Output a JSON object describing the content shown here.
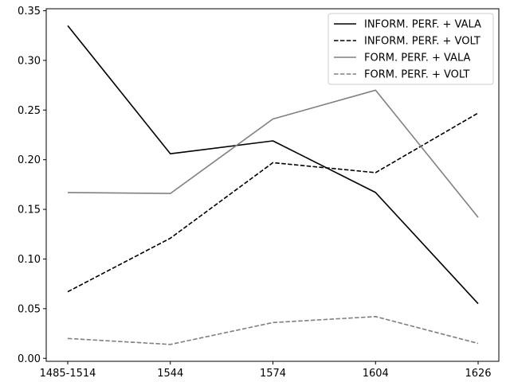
{
  "chart_data": {
    "type": "line",
    "title": "",
    "xlabel": "",
    "ylabel": "",
    "categories": [
      "1485-1514",
      "1544",
      "1574",
      "1604",
      "1626"
    ],
    "ylim": [
      -0.003,
      0.352
    ],
    "yticks": [
      0.0,
      0.05,
      0.1,
      0.15,
      0.2,
      0.25,
      0.3,
      0.35
    ],
    "ytick_labels": [
      "0.00",
      "0.05",
      "0.10",
      "0.15",
      "0.20",
      "0.25",
      "0.30",
      "0.35"
    ],
    "grid": false,
    "legend_position": "top-right",
    "series": [
      {
        "name": "INFORM. PERF. + VALA",
        "values": [
          0.335,
          0.206,
          0.219,
          0.167,
          0.055
        ],
        "color": "#000000",
        "dashed": false
      },
      {
        "name": "INFORM. PERF. + VOLT",
        "values": [
          0.067,
          0.121,
          0.197,
          0.187,
          0.247
        ],
        "color": "#000000",
        "dashed": true
      },
      {
        "name": "FORM. PERF. + VALA",
        "values": [
          0.167,
          0.166,
          0.241,
          0.27,
          0.142
        ],
        "color": "#808080",
        "dashed": false
      },
      {
        "name": "FORM. PERF. + VOLT",
        "values": [
          0.02,
          0.014,
          0.036,
          0.042,
          0.015
        ],
        "color": "#808080",
        "dashed": true
      }
    ]
  }
}
